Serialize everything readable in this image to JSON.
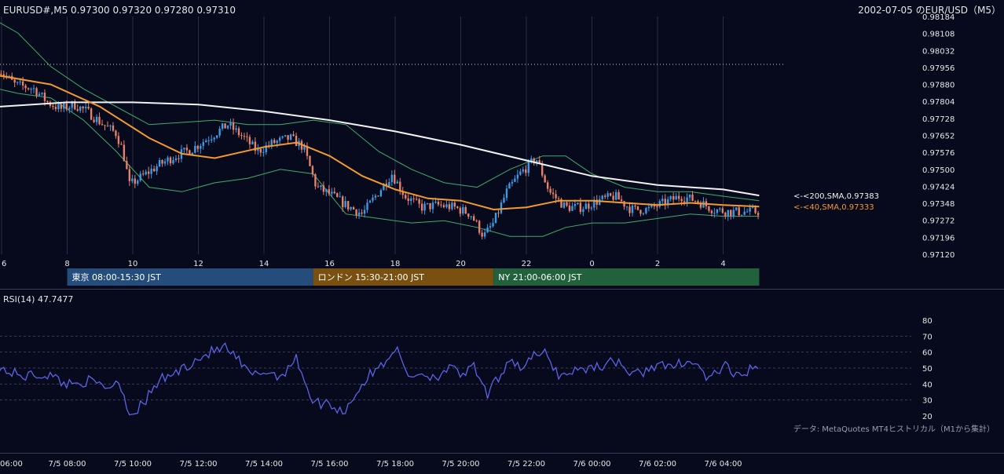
{
  "header": {
    "symbol_ohlc": "EURUSD#,M5 0.97300 0.97320 0.97280 0.97310",
    "date_title": "2002-07-05 のEUR/USD（M5）"
  },
  "price_axis": {
    "ticks": [
      "0.98184",
      "0.98108",
      "0.98032",
      "0.97956",
      "0.97880",
      "0.97804",
      "0.97728",
      "0.97652",
      "0.97576",
      "0.97500",
      "0.97424",
      "0.97348",
      "0.97272",
      "0.97196",
      "0.97120"
    ]
  },
  "hour_axis": {
    "labels": [
      "6",
      "8",
      "10",
      "12",
      "14",
      "16",
      "18",
      "20",
      "22",
      "0",
      "2",
      "4"
    ]
  },
  "sessions": [
    {
      "label": "東京 08:00-15:30 JST",
      "color": "#244d7c"
    },
    {
      "label": "ロンドン 15:30-21:00 JST",
      "color": "#7a5010"
    },
    {
      "label": "NY 21:00-06:00 JST",
      "color": "#21623c"
    }
  ],
  "ma_labels": {
    "sma200": "<-<200,SMA,0.97383",
    "sma40": "<-<40,SMA,0.97333"
  },
  "rsi": {
    "title": "RSI(14) 47.7477",
    "ticks": [
      "80",
      "70",
      "60",
      "50",
      "40",
      "30",
      "20"
    ]
  },
  "footer_note": "データ: MetaQuotes MT4ヒストリカル（M1から集計）",
  "time_axis": {
    "labels": [
      "06:00",
      "7/5 08:00",
      "7/5 10:00",
      "7/5 12:00",
      "7/5 14:00",
      "7/5 16:00",
      "7/5 18:00",
      "7/5 20:00",
      "7/5 22:00",
      "7/6 00:00",
      "7/6 02:00",
      "7/6 04:00"
    ]
  },
  "colors": {
    "background": "#070a1c",
    "up_candle": "#3c9be6",
    "down_candle": "#e8806a",
    "sma200": "#f2f2f2",
    "sma40": "#f39a2e",
    "bollinger": "#3fae6a",
    "rsi_line": "#5b63e6",
    "grid": "#2a2e45",
    "text": "#e6e6e6",
    "muted_text": "#9a9ab0"
  },
  "chart_data": [
    {
      "type": "candlestick",
      "name": "EURUSD# M5",
      "ohlc_last": {
        "open": 0.973,
        "high": 0.9732,
        "low": 0.9728,
        "close": 0.9731
      },
      "ylim": [
        0.9712,
        0.98184
      ],
      "x_hours": [
        6,
        8,
        10,
        12,
        14,
        16,
        18,
        20,
        22,
        24,
        26,
        28
      ],
      "close_path": [
        {
          "t": 5.9,
          "c": 0.9795
        },
        {
          "t": 6.4,
          "c": 0.9788
        },
        {
          "t": 7.0,
          "c": 0.9786
        },
        {
          "t": 7.4,
          "c": 0.978
        },
        {
          "t": 7.8,
          "c": 0.9777
        },
        {
          "t": 8.2,
          "c": 0.9779
        },
        {
          "t": 8.6,
          "c": 0.9776
        },
        {
          "t": 9.1,
          "c": 0.977
        },
        {
          "t": 9.5,
          "c": 0.9766
        },
        {
          "t": 9.7,
          "c": 0.9758
        },
        {
          "t": 9.9,
          "c": 0.9743
        },
        {
          "t": 10.3,
          "c": 0.9747
        },
        {
          "t": 10.8,
          "c": 0.9752
        },
        {
          "t": 11.3,
          "c": 0.9756
        },
        {
          "t": 11.8,
          "c": 0.9759
        },
        {
          "t": 12.4,
          "c": 0.9765
        },
        {
          "t": 12.9,
          "c": 0.977
        },
        {
          "t": 13.4,
          "c": 0.9764
        },
        {
          "t": 13.8,
          "c": 0.9758
        },
        {
          "t": 14.3,
          "c": 0.9762
        },
        {
          "t": 14.8,
          "c": 0.9764
        },
        {
          "t": 15.2,
          "c": 0.976
        },
        {
          "t": 15.6,
          "c": 0.9742
        },
        {
          "t": 16.0,
          "c": 0.9739
        },
        {
          "t": 16.5,
          "c": 0.9734
        },
        {
          "t": 17.0,
          "c": 0.973
        },
        {
          "t": 17.4,
          "c": 0.9738
        },
        {
          "t": 17.9,
          "c": 0.9748
        },
        {
          "t": 18.3,
          "c": 0.9738
        },
        {
          "t": 18.8,
          "c": 0.9733
        },
        {
          "t": 19.3,
          "c": 0.9734
        },
        {
          "t": 19.8,
          "c": 0.9733
        },
        {
          "t": 20.3,
          "c": 0.973
        },
        {
          "t": 20.7,
          "c": 0.972
        },
        {
          "t": 21.0,
          "c": 0.9726
        },
        {
          "t": 21.4,
          "c": 0.974
        },
        {
          "t": 21.8,
          "c": 0.9748
        },
        {
          "t": 22.3,
          "c": 0.9755
        },
        {
          "t": 22.7,
          "c": 0.974
        },
        {
          "t": 23.2,
          "c": 0.9733
        },
        {
          "t": 23.7,
          "c": 0.9733
        },
        {
          "t": 24.2,
          "c": 0.9736
        },
        {
          "t": 24.7,
          "c": 0.9738
        },
        {
          "t": 25.2,
          "c": 0.9732
        },
        {
          "t": 25.7,
          "c": 0.9732
        },
        {
          "t": 26.2,
          "c": 0.9735
        },
        {
          "t": 26.7,
          "c": 0.9738
        },
        {
          "t": 27.2,
          "c": 0.9736
        },
        {
          "t": 27.7,
          "c": 0.9732
        },
        {
          "t": 28.2,
          "c": 0.9731
        },
        {
          "t": 28.7,
          "c": 0.9731
        },
        {
          "t": 29.1,
          "c": 0.9731
        }
      ],
      "sma200_path": [
        {
          "t": 5.9,
          "v": 0.9778
        },
        {
          "t": 8.0,
          "v": 0.978
        },
        {
          "t": 10.0,
          "v": 0.978
        },
        {
          "t": 12.0,
          "v": 0.9779
        },
        {
          "t": 14.0,
          "v": 0.9776
        },
        {
          "t": 16.0,
          "v": 0.9772
        },
        {
          "t": 18.0,
          "v": 0.9767
        },
        {
          "t": 20.0,
          "v": 0.9761
        },
        {
          "t": 22.0,
          "v": 0.9754
        },
        {
          "t": 24.0,
          "v": 0.9747
        },
        {
          "t": 26.0,
          "v": 0.9743
        },
        {
          "t": 28.0,
          "v": 0.9741
        },
        {
          "t": 29.1,
          "v": 0.97383
        }
      ],
      "sma40_path": [
        {
          "t": 5.9,
          "v": 0.9792
        },
        {
          "t": 7.5,
          "v": 0.9788
        },
        {
          "t": 9.0,
          "v": 0.9778
        },
        {
          "t": 10.5,
          "v": 0.9764
        },
        {
          "t": 11.5,
          "v": 0.9757
        },
        {
          "t": 12.5,
          "v": 0.9755
        },
        {
          "t": 14.0,
          "v": 0.976
        },
        {
          "t": 15.0,
          "v": 0.9762
        },
        {
          "t": 16.0,
          "v": 0.9756
        },
        {
          "t": 17.0,
          "v": 0.9747
        },
        {
          "t": 18.0,
          "v": 0.9741
        },
        {
          "t": 19.0,
          "v": 0.9737
        },
        {
          "t": 20.0,
          "v": 0.9736
        },
        {
          "t": 21.0,
          "v": 0.9732
        },
        {
          "t": 22.0,
          "v": 0.9733
        },
        {
          "t": 23.0,
          "v": 0.9736
        },
        {
          "t": 24.0,
          "v": 0.9736
        },
        {
          "t": 25.0,
          "v": 0.9735
        },
        {
          "t": 26.0,
          "v": 0.9734
        },
        {
          "t": 27.0,
          "v": 0.9735
        },
        {
          "t": 28.0,
          "v": 0.9734
        },
        {
          "t": 29.1,
          "v": 0.97333
        }
      ],
      "bollinger_upper": [
        {
          "t": 5.9,
          "v": 0.9816
        },
        {
          "t": 6.5,
          "v": 0.9811
        },
        {
          "t": 7.5,
          "v": 0.9796
        },
        {
          "t": 8.5,
          "v": 0.9786
        },
        {
          "t": 9.5,
          "v": 0.9778
        },
        {
          "t": 10.5,
          "v": 0.977
        },
        {
          "t": 11.5,
          "v": 0.9771
        },
        {
          "t": 12.5,
          "v": 0.9772
        },
        {
          "t": 13.5,
          "v": 0.977
        },
        {
          "t": 14.5,
          "v": 0.977
        },
        {
          "t": 15.5,
          "v": 0.9772
        },
        {
          "t": 16.5,
          "v": 0.977
        },
        {
          "t": 17.5,
          "v": 0.9758
        },
        {
          "t": 18.5,
          "v": 0.975
        },
        {
          "t": 19.5,
          "v": 0.9744
        },
        {
          "t": 20.5,
          "v": 0.9742
        },
        {
          "t": 21.5,
          "v": 0.975
        },
        {
          "t": 22.5,
          "v": 0.9756
        },
        {
          "t": 23.2,
          "v": 0.9756
        },
        {
          "t": 24.0,
          "v": 0.9748
        },
        {
          "t": 25.0,
          "v": 0.9742
        },
        {
          "t": 26.0,
          "v": 0.974
        },
        {
          "t": 27.0,
          "v": 0.974
        },
        {
          "t": 28.0,
          "v": 0.9738
        },
        {
          "t": 29.1,
          "v": 0.9736
        }
      ],
      "bollinger_lower": [
        {
          "t": 5.9,
          "v": 0.9786
        },
        {
          "t": 6.5,
          "v": 0.9784
        },
        {
          "t": 7.5,
          "v": 0.9782
        },
        {
          "t": 8.5,
          "v": 0.9772
        },
        {
          "t": 9.5,
          "v": 0.9758
        },
        {
          "t": 10.5,
          "v": 0.9742
        },
        {
          "t": 11.5,
          "v": 0.974
        },
        {
          "t": 12.5,
          "v": 0.9744
        },
        {
          "t": 13.5,
          "v": 0.9746
        },
        {
          "t": 14.5,
          "v": 0.975
        },
        {
          "t": 15.5,
          "v": 0.9748
        },
        {
          "t": 16.5,
          "v": 0.973
        },
        {
          "t": 17.5,
          "v": 0.9728
        },
        {
          "t": 18.5,
          "v": 0.9726
        },
        {
          "t": 19.5,
          "v": 0.9727
        },
        {
          "t": 20.5,
          "v": 0.9724
        },
        {
          "t": 21.5,
          "v": 0.972
        },
        {
          "t": 22.5,
          "v": 0.972
        },
        {
          "t": 23.2,
          "v": 0.9724
        },
        {
          "t": 24.0,
          "v": 0.9726
        },
        {
          "t": 25.0,
          "v": 0.9726
        },
        {
          "t": 26.0,
          "v": 0.9728
        },
        {
          "t": 27.0,
          "v": 0.973
        },
        {
          "t": 28.0,
          "v": 0.9729
        },
        {
          "t": 29.1,
          "v": 0.9729
        }
      ],
      "dotted_level": 0.9797
    },
    {
      "type": "line",
      "name": "RSI(14)",
      "ylim": [
        20,
        80
      ],
      "gridlines": [
        30,
        40,
        50,
        60,
        70
      ],
      "last": 47.7477,
      "series_path": [
        {
          "t": 5.9,
          "v": 50
        },
        {
          "t": 6.6,
          "v": 45
        },
        {
          "t": 7.4,
          "v": 46
        },
        {
          "t": 8.0,
          "v": 40
        },
        {
          "t": 8.6,
          "v": 42
        },
        {
          "t": 9.2,
          "v": 38
        },
        {
          "t": 9.6,
          "v": 42
        },
        {
          "t": 9.9,
          "v": 21
        },
        {
          "t": 10.3,
          "v": 27
        },
        {
          "t": 10.8,
          "v": 42
        },
        {
          "t": 11.4,
          "v": 48
        },
        {
          "t": 11.9,
          "v": 55
        },
        {
          "t": 12.4,
          "v": 60
        },
        {
          "t": 12.8,
          "v": 63
        },
        {
          "t": 13.2,
          "v": 55
        },
        {
          "t": 13.6,
          "v": 45
        },
        {
          "t": 14.0,
          "v": 48
        },
        {
          "t": 14.5,
          "v": 45
        },
        {
          "t": 15.0,
          "v": 56
        },
        {
          "t": 15.5,
          "v": 28
        },
        {
          "t": 16.0,
          "v": 28
        },
        {
          "t": 16.4,
          "v": 22
        },
        {
          "t": 16.8,
          "v": 34
        },
        {
          "t": 17.2,
          "v": 45
        },
        {
          "t": 17.6,
          "v": 52
        },
        {
          "t": 18.0,
          "v": 63
        },
        {
          "t": 18.4,
          "v": 45
        },
        {
          "t": 18.8,
          "v": 47
        },
        {
          "t": 19.2,
          "v": 44
        },
        {
          "t": 19.6,
          "v": 50
        },
        {
          "t": 20.0,
          "v": 46
        },
        {
          "t": 20.4,
          "v": 50
        },
        {
          "t": 20.8,
          "v": 33
        },
        {
          "t": 21.1,
          "v": 42
        },
        {
          "t": 21.5,
          "v": 57
        },
        {
          "t": 21.8,
          "v": 50
        },
        {
          "t": 22.2,
          "v": 57
        },
        {
          "t": 22.6,
          "v": 59
        },
        {
          "t": 23.0,
          "v": 45
        },
        {
          "t": 23.4,
          "v": 48
        },
        {
          "t": 23.8,
          "v": 50
        },
        {
          "t": 24.4,
          "v": 52
        },
        {
          "t": 24.8,
          "v": 55
        },
        {
          "t": 25.2,
          "v": 45
        },
        {
          "t": 25.6,
          "v": 48
        },
        {
          "t": 26.0,
          "v": 53
        },
        {
          "t": 26.4,
          "v": 49
        },
        {
          "t": 26.8,
          "v": 55
        },
        {
          "t": 27.2,
          "v": 52
        },
        {
          "t": 27.6,
          "v": 42
        },
        {
          "t": 28.0,
          "v": 52
        },
        {
          "t": 28.4,
          "v": 44
        },
        {
          "t": 28.8,
          "v": 49
        },
        {
          "t": 29.1,
          "v": 47.7
        }
      ]
    }
  ]
}
